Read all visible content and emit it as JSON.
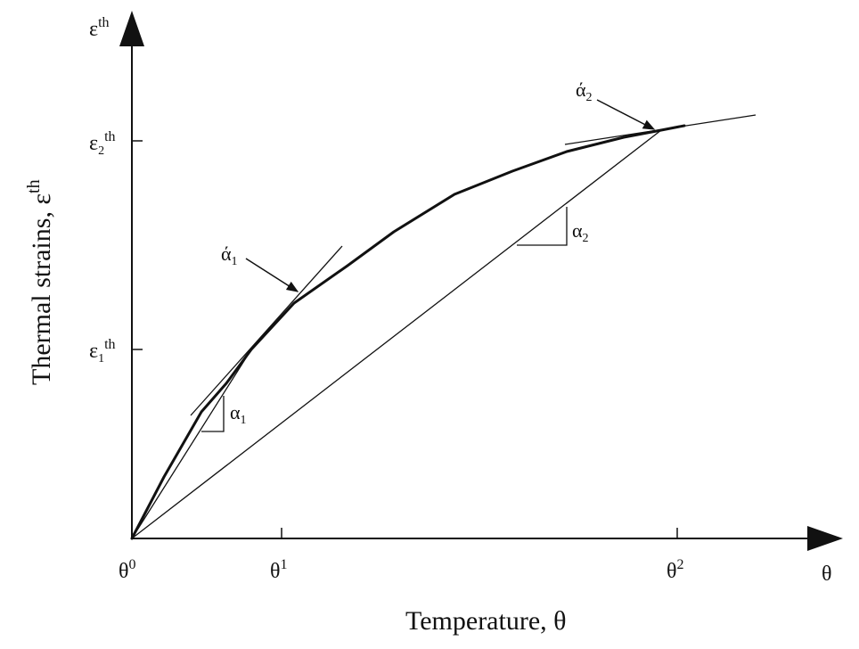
{
  "diagram": {
    "y_axis_title": "Thermal strains, ε",
    "y_axis_title_sup": "th",
    "x_axis_title": "Temperature, θ",
    "y_axis_symbol": "ε",
    "y_axis_symbol_sup": "th",
    "x_axis_symbol": "θ",
    "y_ticks": [
      {
        "base": "ε",
        "sub": "2",
        "sup": "th"
      },
      {
        "base": "ε",
        "sub": "1",
        "sup": "th"
      }
    ],
    "x_ticks": [
      {
        "base": "θ",
        "sup": "0"
      },
      {
        "base": "θ",
        "sup": "1"
      },
      {
        "base": "θ",
        "sup": "2"
      }
    ],
    "annotations": {
      "alpha1_tangent": {
        "base": "ά",
        "sub": "1"
      },
      "alpha1_secant": {
        "base": "α",
        "sub": "1"
      },
      "alpha2_tangent": {
        "base": "ά",
        "sub": "2"
      },
      "alpha2_secant": {
        "base": "α",
        "sub": "2"
      }
    },
    "colors": {
      "line": "#111111",
      "background": "#ffffff"
    }
  }
}
